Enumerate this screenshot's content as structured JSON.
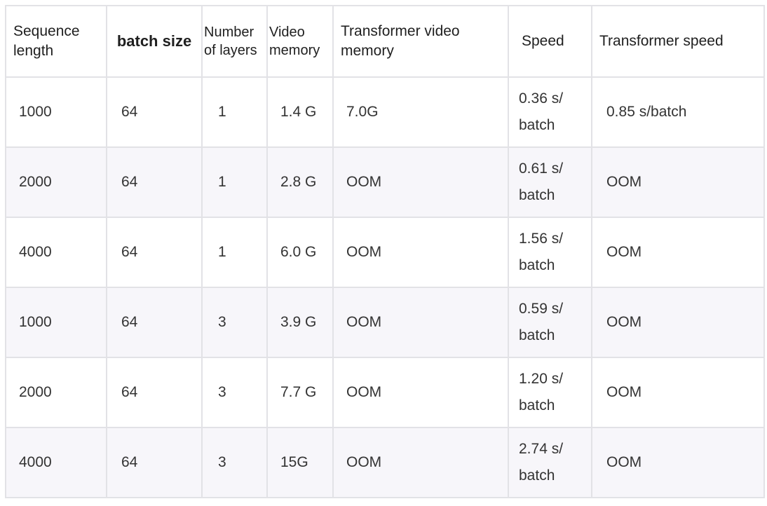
{
  "table": {
    "headers": [
      "Sequence length",
      "batch size",
      "Number of layers",
      "Video memory",
      "Transformer video memory",
      "Speed",
      "Transformer speed"
    ],
    "rows": [
      [
        "1000",
        "64",
        "1",
        "1.4 G",
        "7.0G",
        "0.36 s/ batch",
        "0.85 s/batch"
      ],
      [
        "2000",
        "64",
        "1",
        "2.8 G",
        "OOM",
        "0.61 s/ batch",
        "OOM"
      ],
      [
        "4000",
        "64",
        "1",
        "6.0 G",
        "OOM",
        "1.56 s/ batch",
        "OOM"
      ],
      [
        "1000",
        "64",
        "3",
        "3.9 G",
        "OOM",
        "0.59 s/ batch",
        "OOM"
      ],
      [
        "2000",
        "64",
        "3",
        "7.7 G",
        "OOM",
        "1.20 s/ batch",
        "OOM"
      ],
      [
        "4000",
        "64",
        "3",
        "15G",
        "OOM",
        "2.74 s/ batch",
        "OOM"
      ]
    ]
  },
  "colors": {
    "border": "#e2e2e6",
    "row_alt": "#f7f6fa",
    "text": "#333333"
  }
}
